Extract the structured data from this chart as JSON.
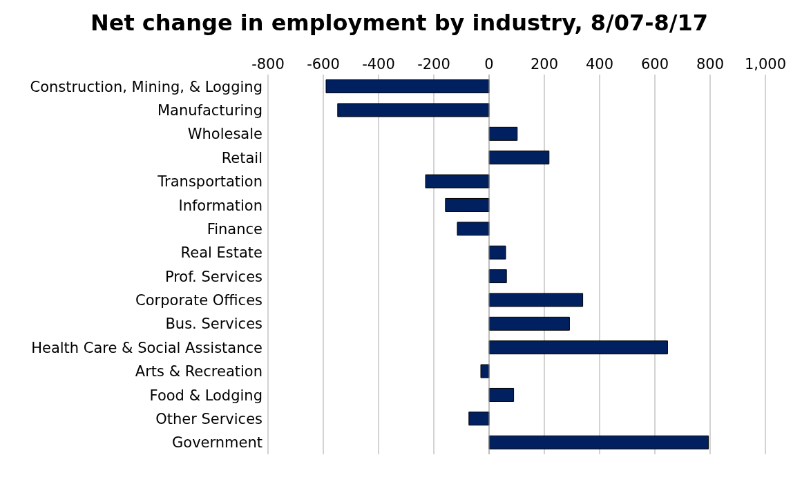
{
  "chart_data": {
    "type": "bar",
    "orientation": "horizontal",
    "title": "Net change in employment by industry, 8/07-8/17",
    "categories": [
      "Construction, Mining, & Logging",
      "Manufacturing",
      "Wholesale",
      "Retail",
      "Transportation",
      "Information",
      "Finance",
      "Real Estate",
      "Prof. Services",
      "Corporate Offices",
      "Bus. Services",
      "Health Care & Social Assistance",
      "Arts & Recreation",
      "Food & Lodging",
      "Other Services",
      "Government"
    ],
    "values": [
      -590,
      -548,
      102,
      217,
      -230,
      -158,
      -115,
      60,
      63,
      339,
      291,
      646,
      -30,
      89,
      -73,
      794
    ],
    "color": "#002060",
    "xlim": [
      -800,
      1000
    ],
    "xticks": [
      -800,
      -600,
      -400,
      -200,
      0,
      200,
      400,
      600,
      800,
      {
        "value": 1000,
        "label": "1,000"
      }
    ],
    "grid": "x"
  }
}
